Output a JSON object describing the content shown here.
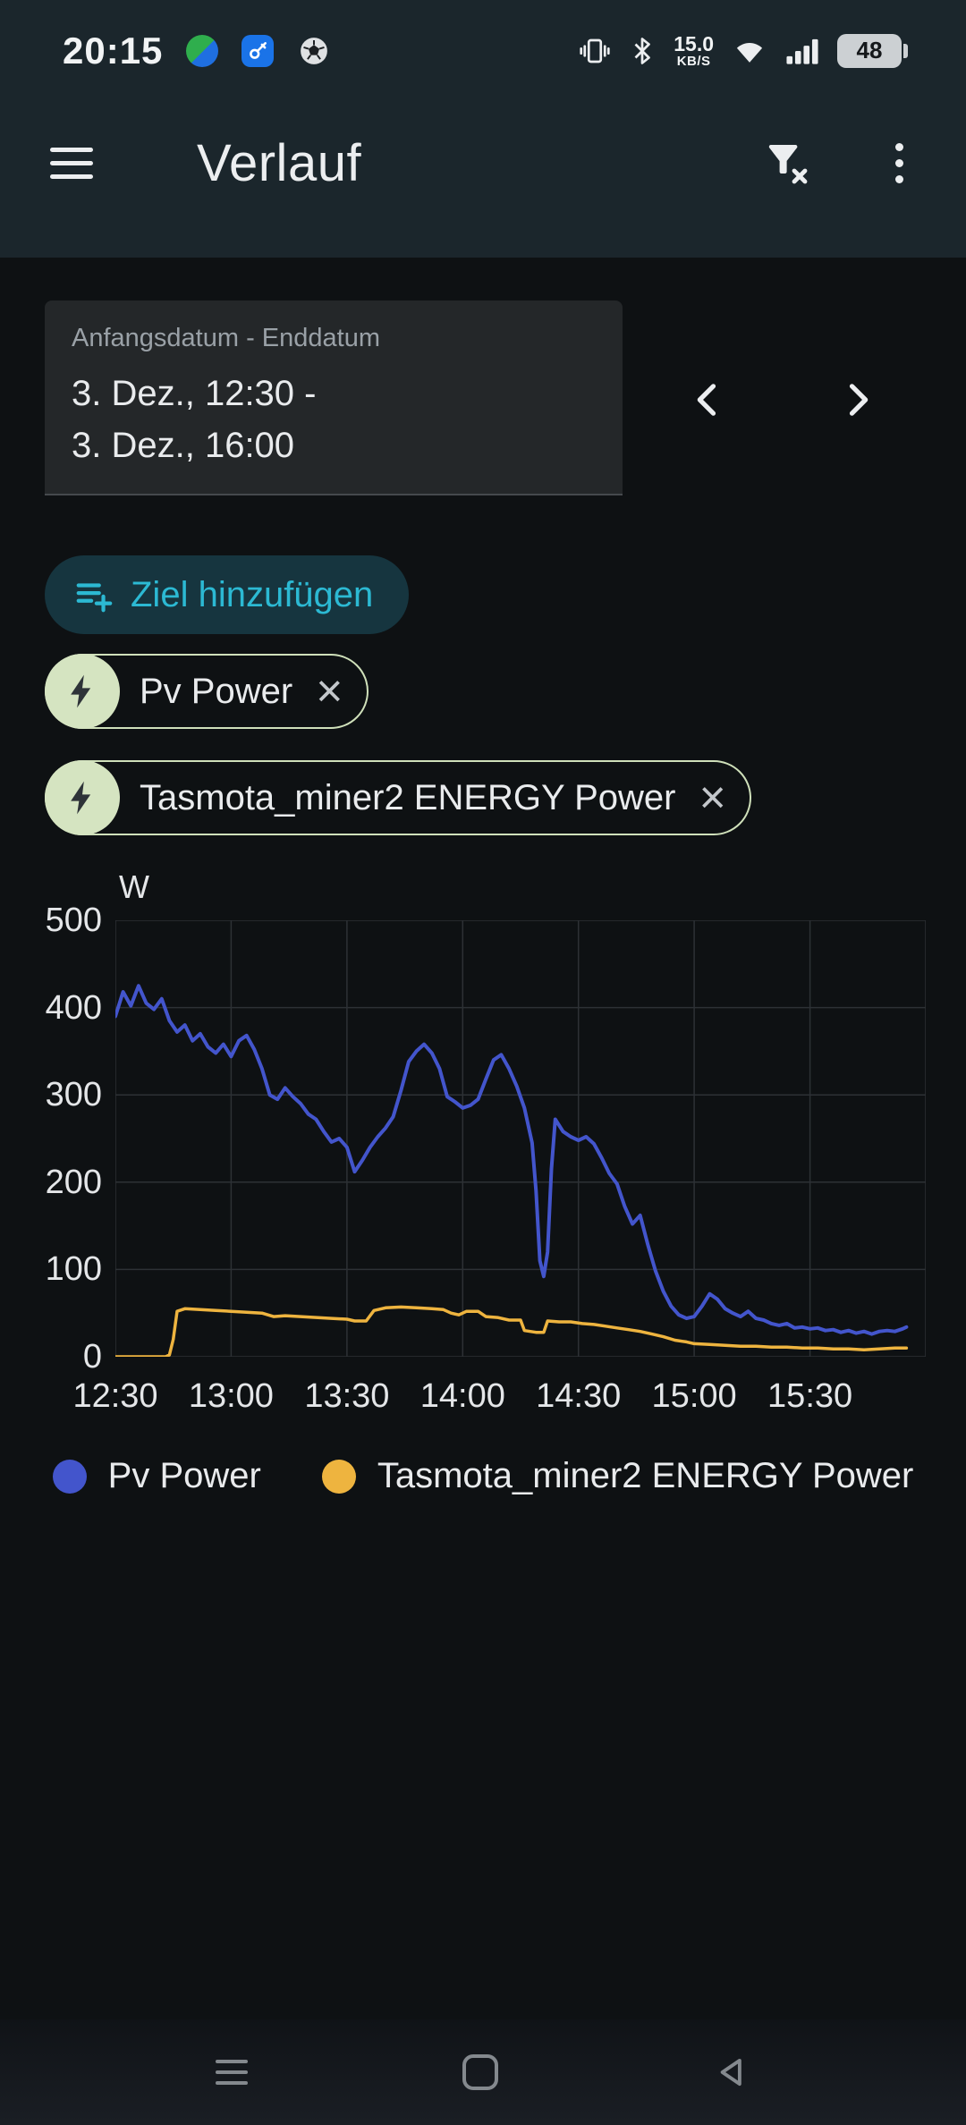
{
  "status_bar": {
    "time": "20:15",
    "net_speed_value": "15.0",
    "net_speed_unit": "KB/S",
    "battery_percent": "48"
  },
  "app_bar": {
    "title": "Verlauf"
  },
  "date_range": {
    "label": "Anfangsdatum - Enddatum",
    "line1": "3. Dez., 12:30 -",
    "line2": "3. Dez., 16:00"
  },
  "target_button": {
    "label": "Ziel hinzufügen"
  },
  "chips": [
    {
      "label": "Pv Power"
    },
    {
      "label": "Tasmota_miner2 ENERGY Power"
    }
  ],
  "icons": {
    "close": "×"
  },
  "colors": {
    "header_bg": "#1b262c",
    "content_bg": "#0e1113",
    "accent_cyan": "#2cb9d3",
    "chip_border": "#cfe0ba",
    "series_blue": "#4355cc",
    "series_orange": "#eeb43f",
    "grid": "#2d3135"
  },
  "chart_data": {
    "type": "line",
    "title": "",
    "unit_label": "W",
    "ylabel": "W",
    "xlabel": "",
    "ylim": [
      0,
      500
    ],
    "y_ticks": [
      0,
      100,
      200,
      300,
      400,
      500
    ],
    "x_range_minutes": 210,
    "x_tick_minutes": 30,
    "x_start": "12:30",
    "x_end": "16:00",
    "x_tick_labels": [
      "12:30",
      "13:00",
      "13:30",
      "14:00",
      "14:30",
      "15:00",
      "15:30"
    ],
    "grid": true,
    "legend_position": "bottom",
    "series": [
      {
        "name": "Pv Power",
        "color": "#4355cc",
        "stroke_width": 4,
        "points": [
          [
            0,
            390
          ],
          [
            2,
            418
          ],
          [
            4,
            402
          ],
          [
            6,
            425
          ],
          [
            8,
            405
          ],
          [
            10,
            398
          ],
          [
            12,
            410
          ],
          [
            14,
            385
          ],
          [
            16,
            372
          ],
          [
            18,
            380
          ],
          [
            20,
            362
          ],
          [
            22,
            370
          ],
          [
            24,
            355
          ],
          [
            26,
            348
          ],
          [
            28,
            358
          ],
          [
            30,
            344
          ],
          [
            32,
            362
          ],
          [
            34,
            368
          ],
          [
            36,
            352
          ],
          [
            38,
            330
          ],
          [
            40,
            300
          ],
          [
            42,
            295
          ],
          [
            44,
            308
          ],
          [
            46,
            298
          ],
          [
            48,
            290
          ],
          [
            50,
            278
          ],
          [
            52,
            272
          ],
          [
            54,
            258
          ],
          [
            56,
            246
          ],
          [
            58,
            250
          ],
          [
            60,
            240
          ],
          [
            62,
            212
          ],
          [
            64,
            225
          ],
          [
            66,
            240
          ],
          [
            68,
            252
          ],
          [
            70,
            262
          ],
          [
            72,
            275
          ],
          [
            74,
            305
          ],
          [
            76,
            338
          ],
          [
            78,
            350
          ],
          [
            80,
            358
          ],
          [
            82,
            348
          ],
          [
            84,
            330
          ],
          [
            86,
            298
          ],
          [
            88,
            292
          ],
          [
            90,
            285
          ],
          [
            92,
            288
          ],
          [
            94,
            295
          ],
          [
            96,
            318
          ],
          [
            98,
            340
          ],
          [
            100,
            346
          ],
          [
            102,
            330
          ],
          [
            104,
            310
          ],
          [
            106,
            285
          ],
          [
            108,
            245
          ],
          [
            109,
            190
          ],
          [
            110,
            110
          ],
          [
            111,
            92
          ],
          [
            112,
            120
          ],
          [
            113,
            215
          ],
          [
            114,
            272
          ],
          [
            116,
            258
          ],
          [
            118,
            252
          ],
          [
            120,
            248
          ],
          [
            122,
            252
          ],
          [
            124,
            244
          ],
          [
            126,
            228
          ],
          [
            128,
            210
          ],
          [
            130,
            198
          ],
          [
            132,
            172
          ],
          [
            134,
            152
          ],
          [
            136,
            162
          ],
          [
            138,
            128
          ],
          [
            140,
            98
          ],
          [
            142,
            75
          ],
          [
            144,
            58
          ],
          [
            146,
            48
          ],
          [
            148,
            44
          ],
          [
            150,
            46
          ],
          [
            152,
            58
          ],
          [
            154,
            72
          ],
          [
            156,
            66
          ],
          [
            158,
            55
          ],
          [
            160,
            50
          ],
          [
            162,
            46
          ],
          [
            164,
            52
          ],
          [
            166,
            44
          ],
          [
            168,
            42
          ],
          [
            170,
            38
          ],
          [
            172,
            36
          ],
          [
            174,
            38
          ],
          [
            176,
            33
          ],
          [
            178,
            34
          ],
          [
            180,
            32
          ],
          [
            182,
            33
          ],
          [
            184,
            30
          ],
          [
            186,
            31
          ],
          [
            188,
            28
          ],
          [
            190,
            30
          ],
          [
            192,
            27
          ],
          [
            194,
            29
          ],
          [
            196,
            26
          ],
          [
            198,
            29
          ],
          [
            200,
            30
          ],
          [
            202,
            29
          ],
          [
            204,
            32
          ],
          [
            205,
            34
          ]
        ]
      },
      {
        "name": "Tasmota_miner2 ENERGY Power",
        "color": "#eeb43f",
        "stroke_width": 3.5,
        "points": [
          [
            0,
            0
          ],
          [
            13,
            0
          ],
          [
            14,
            2
          ],
          [
            15,
            20
          ],
          [
            16,
            52
          ],
          [
            18,
            55
          ],
          [
            22,
            54
          ],
          [
            26,
            53
          ],
          [
            30,
            52
          ],
          [
            34,
            51
          ],
          [
            38,
            50
          ],
          [
            41,
            46
          ],
          [
            44,
            47
          ],
          [
            48,
            46
          ],
          [
            52,
            45
          ],
          [
            56,
            44
          ],
          [
            60,
            43
          ],
          [
            62,
            41
          ],
          [
            65,
            41
          ],
          [
            67,
            53
          ],
          [
            70,
            56
          ],
          [
            74,
            57
          ],
          [
            78,
            56
          ],
          [
            82,
            55
          ],
          [
            85,
            54
          ],
          [
            87,
            50
          ],
          [
            89,
            48
          ],
          [
            91,
            52
          ],
          [
            94,
            52
          ],
          [
            96,
            46
          ],
          [
            99,
            45
          ],
          [
            102,
            42
          ],
          [
            105,
            42
          ],
          [
            106,
            30
          ],
          [
            109,
            28
          ],
          [
            111,
            28
          ],
          [
            112,
            41
          ],
          [
            115,
            40
          ],
          [
            118,
            40
          ],
          [
            121,
            38
          ],
          [
            124,
            37
          ],
          [
            127,
            35
          ],
          [
            130,
            33
          ],
          [
            133,
            31
          ],
          [
            136,
            29
          ],
          [
            139,
            26
          ],
          [
            142,
            23
          ],
          [
            145,
            19
          ],
          [
            148,
            17
          ],
          [
            150,
            15
          ],
          [
            154,
            14
          ],
          [
            158,
            13
          ],
          [
            162,
            12
          ],
          [
            166,
            12
          ],
          [
            170,
            11
          ],
          [
            174,
            11
          ],
          [
            178,
            10
          ],
          [
            182,
            10
          ],
          [
            186,
            9
          ],
          [
            190,
            9
          ],
          [
            194,
            8
          ],
          [
            198,
            9
          ],
          [
            202,
            10
          ],
          [
            205,
            10
          ]
        ]
      }
    ]
  },
  "legend": [
    {
      "label": "Pv Power",
      "color": "#4355cc"
    },
    {
      "label": "Tasmota_miner2 ENERGY Power",
      "color": "#eeb43f"
    }
  ]
}
